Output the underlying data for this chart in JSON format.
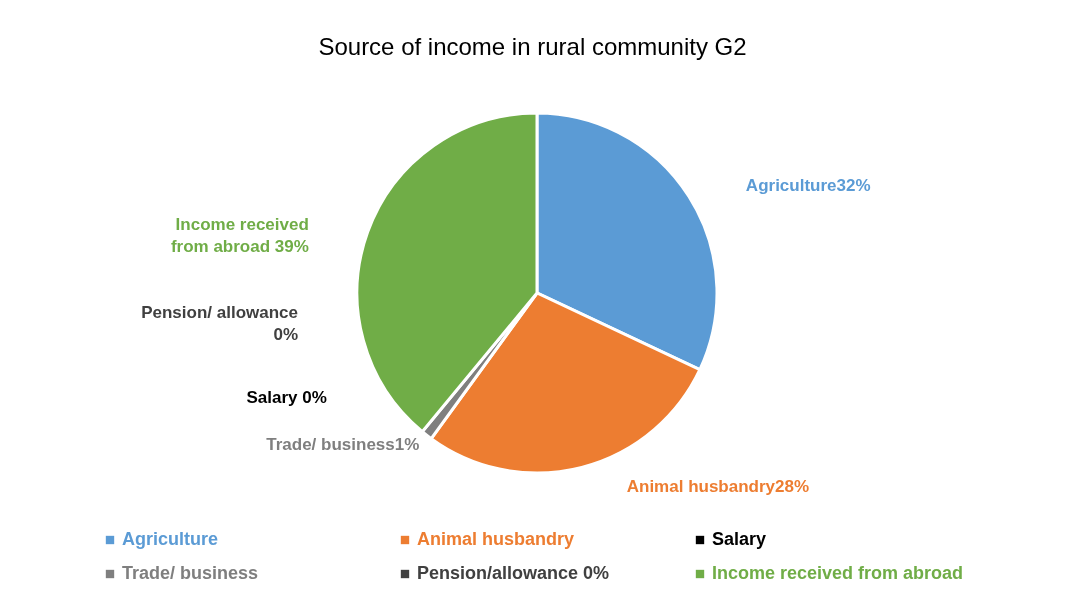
{
  "chart_data": {
    "type": "pie",
    "title": "Source of income in rural community G2",
    "categories": [
      "Agriculture",
      "Animal husbandry",
      "Salary",
      "Trade/ business",
      "Pension/allowance 0%",
      "Income received from abroad"
    ],
    "values": [
      32,
      28,
      0,
      1,
      0,
      39
    ],
    "colors": [
      "#5b9bd5",
      "#ed7d31",
      "#000000",
      "#7f7f7f",
      "#404040",
      "#70ad47"
    ],
    "value_labels": [
      "Agriculture32%",
      "Animal husbandry28%",
      "Salary 0%",
      "Trade/ business1%",
      "Pension/ allowance 0%",
      "Income received from abroad 39%"
    ],
    "legend": "bottom"
  }
}
